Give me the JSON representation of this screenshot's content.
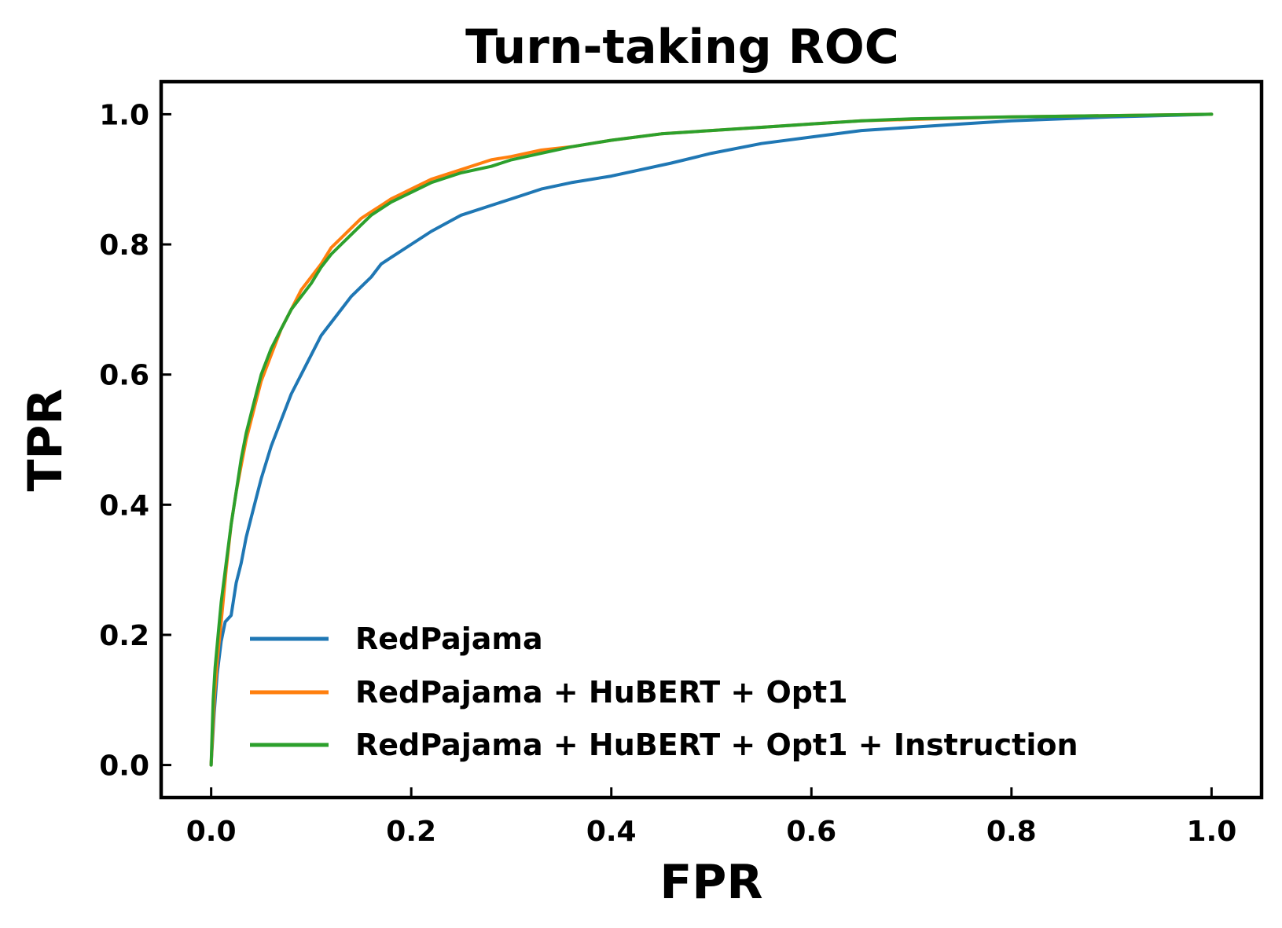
{
  "chart_data": {
    "type": "line",
    "title": "Turn-taking ROC",
    "xlabel": "FPR",
    "ylabel": "TPR",
    "xlim": [
      -0.05,
      1.05
    ],
    "ylim": [
      -0.05,
      1.05
    ],
    "xticks": [
      0.0,
      0.2,
      0.4,
      0.6,
      0.8,
      1.0
    ],
    "yticks": [
      0.0,
      0.2,
      0.4,
      0.6,
      0.8,
      1.0
    ],
    "xtick_labels": [
      "0.0",
      "0.2",
      "0.4",
      "0.6",
      "0.8",
      "1.0"
    ],
    "ytick_labels": [
      "0.0",
      "0.2",
      "0.4",
      "0.6",
      "0.8",
      "1.0"
    ],
    "grid": false,
    "legend_position": "lower-right",
    "series": [
      {
        "name": "RedPajama",
        "color": "#1f77b4",
        "x": [
          0.0,
          0.003,
          0.006,
          0.01,
          0.014,
          0.02,
          0.025,
          0.03,
          0.035,
          0.04,
          0.045,
          0.05,
          0.06,
          0.07,
          0.08,
          0.09,
          0.1,
          0.11,
          0.12,
          0.13,
          0.14,
          0.15,
          0.16,
          0.17,
          0.18,
          0.2,
          0.22,
          0.25,
          0.28,
          0.3,
          0.33,
          0.36,
          0.4,
          0.43,
          0.46,
          0.5,
          0.55,
          0.6,
          0.65,
          0.7,
          0.75,
          0.8,
          0.85,
          0.9,
          0.95,
          1.0
        ],
        "y": [
          0.0,
          0.08,
          0.14,
          0.19,
          0.22,
          0.23,
          0.28,
          0.31,
          0.35,
          0.38,
          0.41,
          0.44,
          0.49,
          0.53,
          0.57,
          0.6,
          0.63,
          0.66,
          0.68,
          0.7,
          0.72,
          0.735,
          0.75,
          0.77,
          0.78,
          0.8,
          0.82,
          0.845,
          0.86,
          0.87,
          0.885,
          0.895,
          0.905,
          0.915,
          0.925,
          0.94,
          0.955,
          0.965,
          0.975,
          0.98,
          0.985,
          0.99,
          0.993,
          0.996,
          0.998,
          1.0
        ]
      },
      {
        "name": "RedPajama + HuBERT + Opt1",
        "color": "#ff7f0e",
        "x": [
          0.0,
          0.003,
          0.006,
          0.01,
          0.015,
          0.02,
          0.025,
          0.03,
          0.035,
          0.04,
          0.045,
          0.05,
          0.06,
          0.07,
          0.08,
          0.09,
          0.1,
          0.11,
          0.12,
          0.13,
          0.14,
          0.15,
          0.16,
          0.17,
          0.18,
          0.2,
          0.22,
          0.25,
          0.28,
          0.3,
          0.33,
          0.36,
          0.4,
          0.45,
          0.5,
          0.55,
          0.6,
          0.65,
          0.7,
          0.8,
          0.9,
          1.0
        ],
        "y": [
          0.0,
          0.1,
          0.16,
          0.22,
          0.3,
          0.37,
          0.42,
          0.46,
          0.5,
          0.53,
          0.56,
          0.59,
          0.63,
          0.67,
          0.7,
          0.73,
          0.75,
          0.77,
          0.795,
          0.81,
          0.825,
          0.84,
          0.85,
          0.86,
          0.87,
          0.885,
          0.9,
          0.915,
          0.93,
          0.935,
          0.945,
          0.95,
          0.96,
          0.97,
          0.975,
          0.98,
          0.985,
          0.99,
          0.992,
          0.996,
          0.998,
          1.0
        ]
      },
      {
        "name": "RedPajama + HuBERT + Opt1 + Instruction",
        "color": "#2ca02c",
        "x": [
          0.0,
          0.002,
          0.004,
          0.007,
          0.01,
          0.015,
          0.02,
          0.025,
          0.03,
          0.035,
          0.04,
          0.045,
          0.05,
          0.06,
          0.07,
          0.08,
          0.09,
          0.1,
          0.11,
          0.12,
          0.13,
          0.14,
          0.15,
          0.16,
          0.17,
          0.18,
          0.2,
          0.22,
          0.25,
          0.28,
          0.3,
          0.33,
          0.36,
          0.4,
          0.45,
          0.5,
          0.55,
          0.6,
          0.65,
          0.7,
          0.8,
          0.9,
          1.0
        ],
        "y": [
          0.0,
          0.1,
          0.15,
          0.2,
          0.25,
          0.31,
          0.37,
          0.42,
          0.47,
          0.51,
          0.54,
          0.57,
          0.6,
          0.64,
          0.67,
          0.7,
          0.72,
          0.74,
          0.765,
          0.785,
          0.8,
          0.815,
          0.83,
          0.845,
          0.855,
          0.865,
          0.88,
          0.895,
          0.91,
          0.92,
          0.93,
          0.94,
          0.95,
          0.96,
          0.97,
          0.975,
          0.98,
          0.985,
          0.99,
          0.993,
          0.996,
          0.998,
          1.0
        ]
      }
    ]
  }
}
